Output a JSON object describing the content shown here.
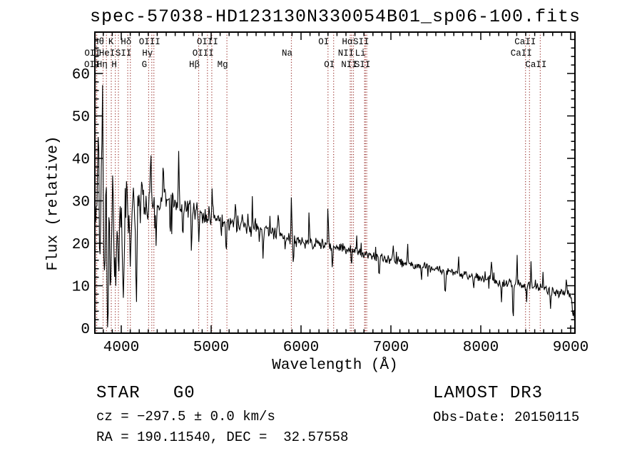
{
  "figure": {
    "title": "spec-57038-HD123130N330054B01_sp06-100.fits",
    "class_line": "STAR   G0",
    "cz_line": "cz = −297.5 ± 0.0 km/s",
    "radec_line": "RA = 190.11540, DEC =  32.57558",
    "survey": "LAMOST DR3",
    "obs_date": "Obs-Date: 20150115"
  },
  "chart_data": {
    "type": "line",
    "title": "spec-57038-HD123130N330054B01_sp06-100.fits",
    "xlabel": "Wavelength (Å)",
    "ylabel": "Flux (relative)",
    "xlim": [
      3706,
      9048
    ],
    "ylim": [
      -1.2,
      69.7
    ],
    "x_ticks": [
      4000,
      5000,
      6000,
      7000,
      8000,
      9000
    ],
    "y_ticks": [
      0,
      10,
      20,
      30,
      40,
      50,
      60
    ],
    "x_minor_step": 100,
    "y_minor_step": 2,
    "grid": false,
    "legend": "none",
    "line_color": "#000000",
    "frame_color": "#000000",
    "line_marker_color": "#9b3430",
    "seed": 1337,
    "spectral_lines": [
      {
        "label": "Hθ",
        "wavelength": 3798,
        "row": 1
      },
      {
        "label": "K",
        "wavelength": 3933,
        "row": 1
      },
      {
        "label": "Hδ",
        "wavelength": 4101,
        "row": 1
      },
      {
        "label": "OIII",
        "wavelength": 4363,
        "row": 1
      },
      {
        "label": "OIII",
        "wavelength": 5007,
        "row": 1
      },
      {
        "label": "OI",
        "wavelength": 6300,
        "row": 1
      },
      {
        "label": "Hα",
        "wavelength": 6563,
        "row": 1
      },
      {
        "label": "SII",
        "wavelength": 6716,
        "row": 1
      },
      {
        "label": "CaII",
        "wavelength": 8542,
        "row": 1
      },
      {
        "label": "OII",
        "wavelength": 3727,
        "row": 2
      },
      {
        "label": "HeI",
        "wavelength": 3889,
        "row": 2
      },
      {
        "label": "SII",
        "wavelength": 4072,
        "row": 2
      },
      {
        "label": "Hγ",
        "wavelength": 4340,
        "row": 2
      },
      {
        "label": "OIII",
        "wavelength": 4959,
        "row": 2
      },
      {
        "label": "Na",
        "wavelength": 5893,
        "row": 2
      },
      {
        "label": "NII",
        "wavelength": 6548,
        "row": 2
      },
      {
        "label": "Li",
        "wavelength": 6707,
        "row": 2
      },
      {
        "label": "CaII",
        "wavelength": 8498,
        "row": 2
      },
      {
        "label": "OII",
        "wavelength": 3725,
        "row": 3
      },
      {
        "label": "Hη",
        "wavelength": 3835,
        "row": 3
      },
      {
        "label": "H",
        "wavelength": 3968,
        "row": 3
      },
      {
        "label": "G",
        "wavelength": 4305,
        "row": 3
      },
      {
        "label": "Hβ",
        "wavelength": 4861,
        "row": 3
      },
      {
        "label": "Mg",
        "wavelength": 5175,
        "row": 3
      },
      {
        "label": "OI",
        "wavelength": 6363,
        "row": 3
      },
      {
        "label": "NII",
        "wavelength": 6583,
        "row": 3
      },
      {
        "label": "SII",
        "wavelength": 6731,
        "row": 3
      },
      {
        "label": "CaII",
        "wavelength": 8662,
        "row": 3
      }
    ],
    "continuum": [
      [
        3706,
        27
      ],
      [
        3750,
        29
      ],
      [
        3800,
        30
      ],
      [
        3850,
        27.5
      ],
      [
        3900,
        26
      ],
      [
        3950,
        26
      ],
      [
        4000,
        26.5
      ],
      [
        4100,
        27.5
      ],
      [
        4200,
        28.2
      ],
      [
        4300,
        29
      ],
      [
        4450,
        30
      ],
      [
        4600,
        29.5
      ],
      [
        4750,
        28.5
      ],
      [
        4900,
        27
      ],
      [
        5000,
        26
      ],
      [
        5150,
        25
      ],
      [
        5300,
        24.5
      ],
      [
        5450,
        23.6
      ],
      [
        5600,
        22.6
      ],
      [
        5750,
        21.8
      ],
      [
        5900,
        21
      ],
      [
        6050,
        20.4
      ],
      [
        6200,
        19.8
      ],
      [
        6350,
        19.3
      ],
      [
        6500,
        18.7
      ],
      [
        6650,
        17.8
      ],
      [
        6800,
        17
      ],
      [
        6950,
        16.4
      ],
      [
        7100,
        15.7
      ],
      [
        7250,
        15
      ],
      [
        7400,
        14.3
      ],
      [
        7550,
        13.8
      ],
      [
        7700,
        13.2
      ],
      [
        7850,
        12.4
      ],
      [
        8000,
        11.8
      ],
      [
        8150,
        11
      ],
      [
        8300,
        10.4
      ],
      [
        8450,
        10.1
      ],
      [
        8600,
        9.7
      ],
      [
        8750,
        9.2
      ],
      [
        8900,
        8.5
      ],
      [
        9000,
        7.8
      ],
      [
        9030,
        6.8
      ],
      [
        9048,
        1
      ]
    ],
    "noise_sigma": [
      [
        3706,
        8
      ],
      [
        3760,
        10
      ],
      [
        3830,
        11
      ],
      [
        3900,
        10
      ],
      [
        3980,
        9
      ],
      [
        4060,
        7.5
      ],
      [
        4150,
        6
      ],
      [
        4300,
        5
      ],
      [
        4500,
        4
      ],
      [
        4700,
        3.4
      ],
      [
        5000,
        2.8
      ],
      [
        5300,
        2.4
      ],
      [
        5600,
        2.1
      ],
      [
        5900,
        1.9
      ],
      [
        6200,
        1.7
      ],
      [
        6500,
        1.5
      ],
      [
        6800,
        1.4
      ],
      [
        7200,
        1.25
      ],
      [
        7600,
        1.2
      ],
      [
        8000,
        1.2
      ],
      [
        8400,
        1.35
      ],
      [
        8700,
        1.5
      ],
      [
        9000,
        1.7
      ],
      [
        9048,
        1.8
      ]
    ],
    "spikes": [
      [
        3745,
        15,
        7
      ],
      [
        3762,
        -13,
        6
      ],
      [
        3790,
        22,
        6
      ],
      [
        3812,
        -17,
        7
      ],
      [
        3850,
        -26,
        7
      ],
      [
        3880,
        -15,
        6
      ],
      [
        3903,
        9,
        5
      ],
      [
        3935,
        -21,
        7
      ],
      [
        3968,
        -13,
        6
      ],
      [
        4023,
        -23,
        8
      ],
      [
        4058,
        9,
        5
      ],
      [
        4101,
        -11,
        6
      ],
      [
        4168,
        -21,
        7
      ],
      [
        4227,
        11,
        5
      ],
      [
        4330,
        13,
        5
      ],
      [
        4388,
        -10,
        6
      ],
      [
        4468,
        9,
        5
      ],
      [
        4545,
        -9,
        5
      ],
      [
        4640,
        10,
        5
      ],
      [
        4686,
        -9,
        5
      ],
      [
        4782,
        -8,
        5
      ],
      [
        4861,
        -7,
        5
      ],
      [
        5012,
        7,
        4
      ],
      [
        5168,
        -8,
        5
      ],
      [
        5270,
        6,
        4
      ],
      [
        5460,
        7,
        4
      ],
      [
        5580,
        -6,
        4
      ],
      [
        5745,
        6,
        4
      ],
      [
        5893,
        12,
        4
      ],
      [
        5915,
        -6,
        4
      ],
      [
        6090,
        7,
        4
      ],
      [
        6300,
        9.5,
        4
      ],
      [
        6350,
        -6,
        4
      ],
      [
        6560,
        -4,
        4
      ],
      [
        6618,
        4,
        4
      ],
      [
        6868,
        -5,
        5
      ],
      [
        7025,
        4,
        4
      ],
      [
        7186,
        4,
        4
      ],
      [
        7340,
        -4,
        4
      ],
      [
        7605,
        -5,
        6
      ],
      [
        7755,
        4,
        4
      ],
      [
        7920,
        -4,
        4
      ],
      [
        8120,
        4,
        4
      ],
      [
        8230,
        -4,
        4
      ],
      [
        8360,
        -9.5,
        5
      ],
      [
        8405,
        6,
        4
      ],
      [
        8508,
        -3.5,
        4
      ],
      [
        8560,
        5.5,
        4
      ],
      [
        8692,
        4,
        4
      ],
      [
        8775,
        -4,
        4
      ],
      [
        8955,
        3.5,
        4
      ],
      [
        9025,
        -5,
        5
      ]
    ]
  }
}
